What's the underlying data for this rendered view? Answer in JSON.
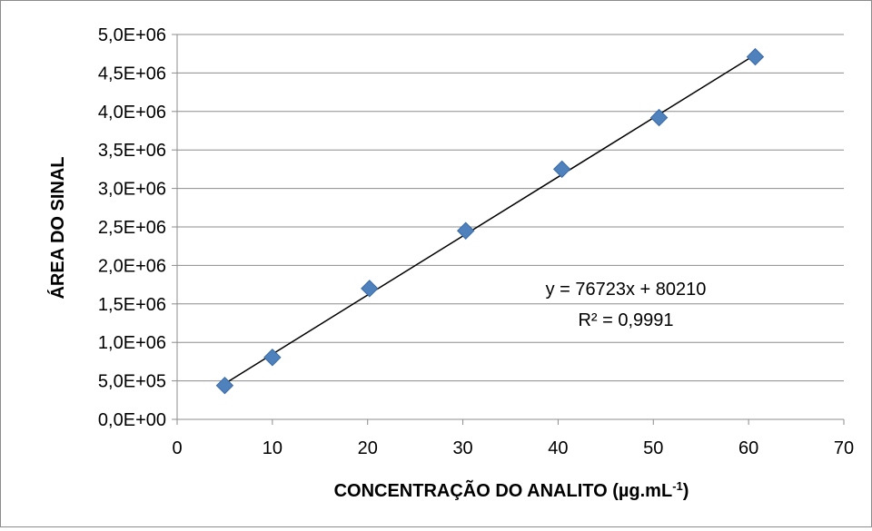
{
  "chart_data": {
    "type": "scatter",
    "x": [
      5,
      10,
      20.2,
      30.3,
      40.4,
      50.6,
      60.7
    ],
    "y": [
      440000,
      805000,
      1700000,
      2450000,
      3250000,
      3920000,
      4710000
    ],
    "marker": "diamond",
    "marker_color": "#4f81bd",
    "trendline": {
      "type": "linear",
      "slope": 76723,
      "intercept": 80210,
      "x_range": [
        4.8,
        60.7
      ],
      "color": "#000000"
    },
    "xlabel": "CONCENTRAÇÃO DO ANALITO (µg.mL",
    "xlabel_sup": "-1",
    "xlabel_end": ")",
    "ylabel": "ÁREA DO SINAL",
    "xlim": [
      0,
      70
    ],
    "ylim": [
      0,
      5000000
    ],
    "x_ticks": [
      0,
      10,
      20,
      30,
      40,
      50,
      60,
      70
    ],
    "x_tick_labels": [
      "0",
      "10",
      "20",
      "30",
      "40",
      "50",
      "60",
      "70"
    ],
    "y_ticks": [
      0,
      500000,
      1000000,
      1500000,
      2000000,
      2500000,
      3000000,
      3500000,
      4000000,
      4500000,
      5000000
    ],
    "y_tick_labels": [
      "0,0E+00",
      "5,0E+05",
      "1,0E+06",
      "1,5E+06",
      "2,0E+06",
      "2,5E+06",
      "3,0E+06",
      "3,5E+06",
      "4,0E+06",
      "4,5E+06",
      "5,0E+06"
    ],
    "grid": "horizontal",
    "grid_color": "#8c8c8c",
    "annotations": [
      "y = 76723x + 80210",
      "R² = 0,9991"
    ]
  }
}
